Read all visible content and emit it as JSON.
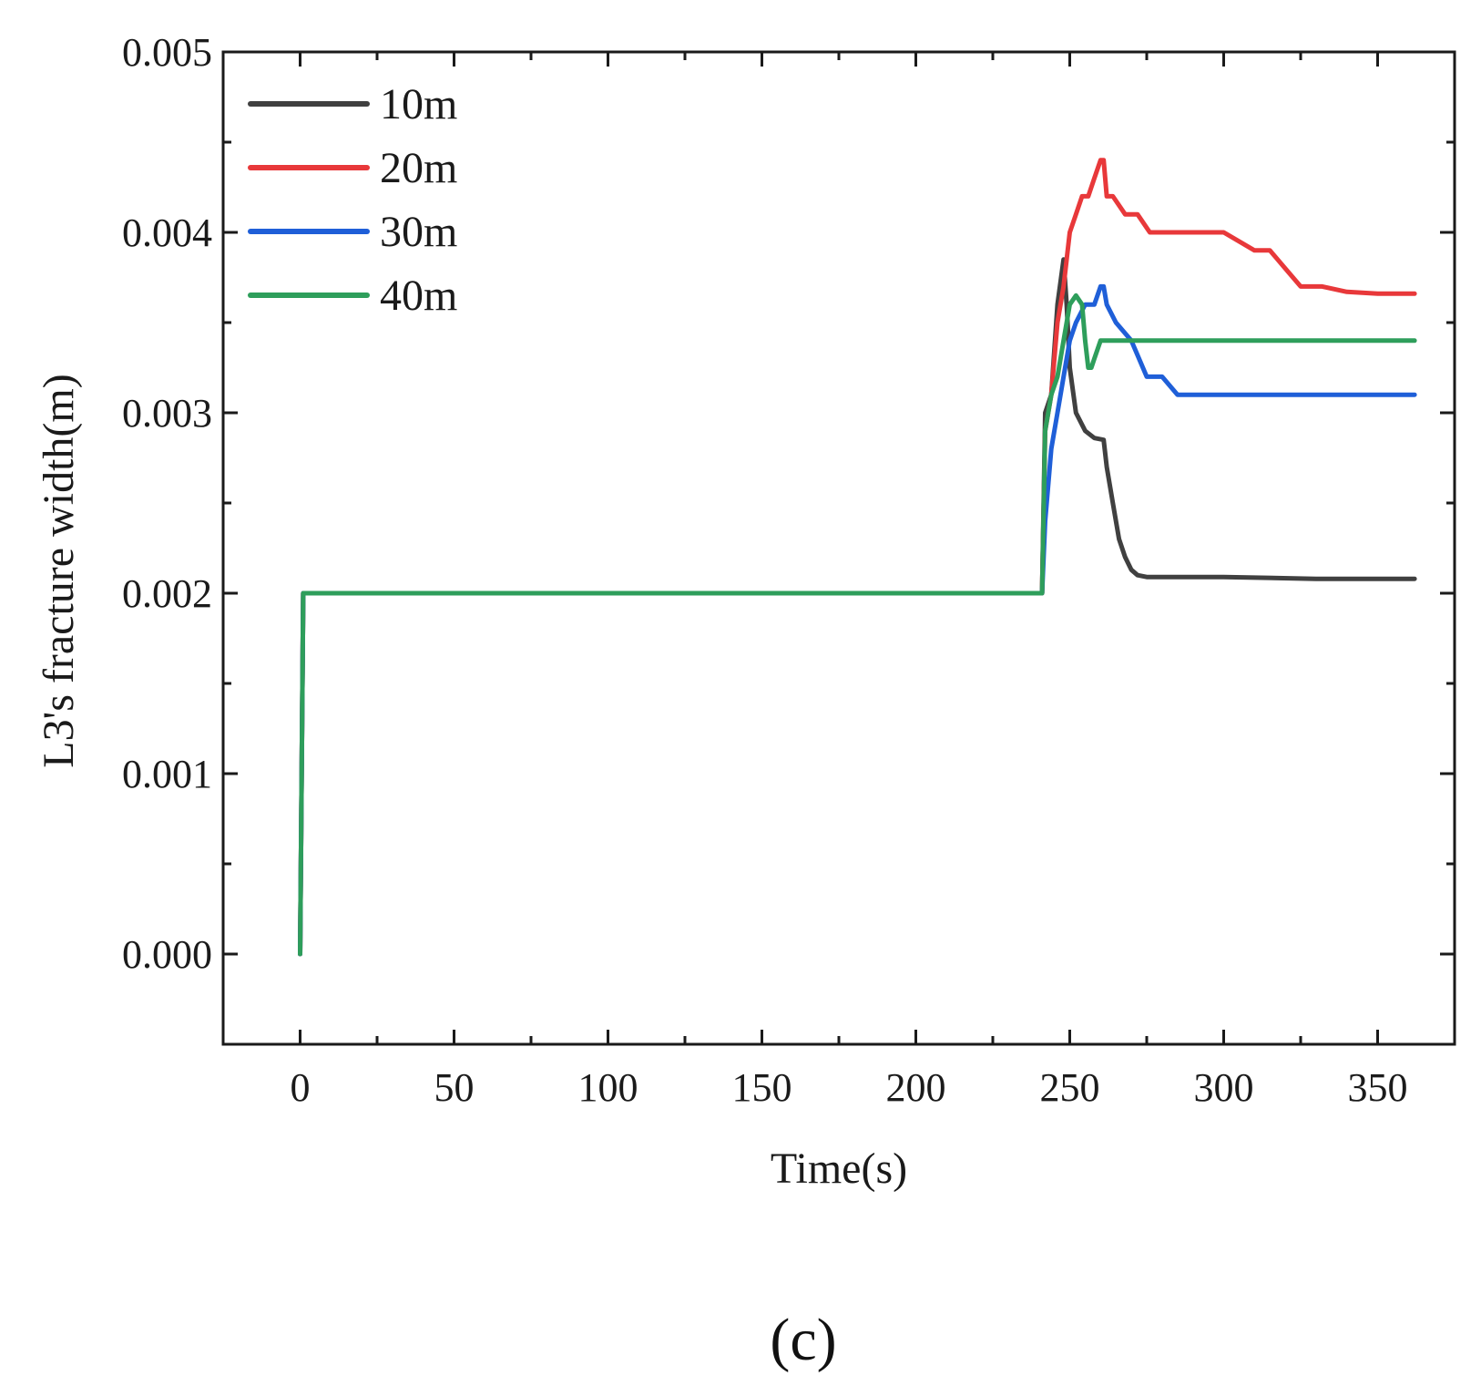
{
  "chart_data": {
    "type": "line",
    "title": "",
    "panel_label": "(c)",
    "xlabel": "Time(s)",
    "ylabel": "L3's fracture width(m)",
    "xlim": [
      -25,
      375
    ],
    "ylim": [
      -0.0005,
      0.005
    ],
    "x_ticks": [
      0,
      50,
      100,
      150,
      200,
      250,
      300,
      350
    ],
    "x_tick_labels": [
      "0",
      "50",
      "100",
      "150",
      "200",
      "250",
      "300",
      "350"
    ],
    "y_ticks": [
      0.0,
      0.001,
      0.002,
      0.003,
      0.004,
      0.005
    ],
    "y_tick_labels": [
      "0.000",
      "0.001",
      "0.002",
      "0.003",
      "0.004",
      "0.005"
    ],
    "grid": false,
    "legend_position": "top-left",
    "series": [
      {
        "name": "10m",
        "color": "#404040",
        "x": [
          0,
          1,
          241,
          242,
          244,
          246,
          248,
          249,
          250,
          252,
          255,
          258,
          261,
          262,
          264,
          266,
          268,
          270,
          272,
          275,
          280,
          300,
          330,
          362
        ],
        "y": [
          0.0,
          0.002,
          0.002,
          0.003,
          0.0031,
          0.0036,
          0.00385,
          0.0036,
          0.00325,
          0.003,
          0.0029,
          0.00286,
          0.00285,
          0.0027,
          0.0025,
          0.0023,
          0.0022,
          0.00213,
          0.0021,
          0.00209,
          0.00209,
          0.00209,
          0.00208,
          0.00208
        ]
      },
      {
        "name": "20m",
        "color": "#e8383a",
        "x": [
          0,
          1,
          241,
          242,
          244,
          246,
          248,
          250,
          252,
          254,
          256,
          258,
          260,
          261,
          262,
          264,
          268,
          272,
          276,
          280,
          285,
          290,
          300,
          310,
          315,
          320,
          325,
          328,
          332,
          340,
          350,
          362
        ],
        "y": [
          0.0,
          0.002,
          0.002,
          0.0029,
          0.0031,
          0.0035,
          0.0037,
          0.004,
          0.0041,
          0.0042,
          0.0042,
          0.0043,
          0.0044,
          0.0044,
          0.0042,
          0.0042,
          0.0041,
          0.0041,
          0.004,
          0.004,
          0.004,
          0.004,
          0.004,
          0.0039,
          0.0039,
          0.0038,
          0.0037,
          0.0037,
          0.0037,
          0.00367,
          0.00366,
          0.00366
        ]
      },
      {
        "name": "30m",
        "color": "#1f5fd8",
        "x": [
          0,
          1,
          241,
          242,
          244,
          246,
          248,
          250,
          252,
          255,
          258,
          260,
          261,
          262,
          265,
          270,
          275,
          280,
          285,
          290,
          300,
          330,
          362
        ],
        "y": [
          0.0,
          0.002,
          0.002,
          0.0024,
          0.0028,
          0.003,
          0.0032,
          0.0034,
          0.0035,
          0.0036,
          0.0036,
          0.0037,
          0.0037,
          0.0036,
          0.0035,
          0.0034,
          0.0032,
          0.0032,
          0.0031,
          0.0031,
          0.0031,
          0.0031,
          0.0031
        ]
      },
      {
        "name": "40m",
        "color": "#2e9e5b",
        "x": [
          0,
          1,
          241,
          242,
          244,
          246,
          248,
          250,
          252,
          254,
          255,
          256,
          257,
          258,
          260,
          262,
          265,
          270,
          280,
          290,
          300,
          330,
          362
        ],
        "y": [
          0.0,
          0.002,
          0.002,
          0.0029,
          0.0031,
          0.0032,
          0.0034,
          0.0036,
          0.00365,
          0.0036,
          0.0034,
          0.00325,
          0.00325,
          0.0033,
          0.0034,
          0.0034,
          0.0034,
          0.0034,
          0.0034,
          0.0034,
          0.0034,
          0.0034,
          0.0034
        ]
      }
    ]
  }
}
